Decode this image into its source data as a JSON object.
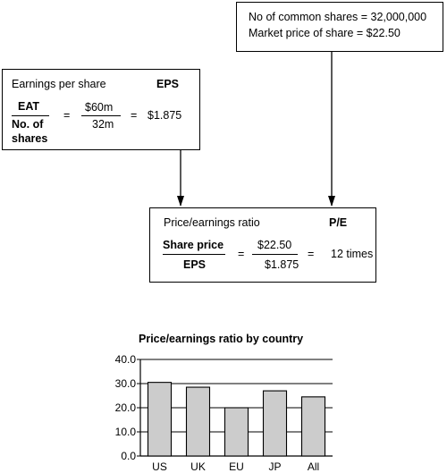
{
  "shares_box": {
    "line1": "No of common shares = 32,000,000",
    "line2": "Market price of share = $22.50"
  },
  "eps_box": {
    "title": "Earnings per share",
    "abbr": "EPS",
    "num_label": "EAT",
    "den_label_1": "No. of",
    "den_label_2": "shares",
    "eq1": "=",
    "num_value": "$60m",
    "den_value": "32m",
    "eq2": "=",
    "result": "$1.875"
  },
  "pe_box": {
    "title": "Price/earnings ratio",
    "abbr": "P/E",
    "num_label": "Share price",
    "den_label": "EPS",
    "eq1": "=",
    "num_value": "$22.50",
    "den_value": "$1.875",
    "eq2": "=",
    "result": "12 times"
  },
  "chart_data": {
    "type": "bar",
    "title": "Price/earnings ratio by country",
    "categories": [
      "US",
      "UK",
      "EU",
      "JP",
      "All"
    ],
    "values": [
      30.5,
      28.5,
      20.0,
      27.0,
      24.5
    ],
    "ylim": [
      0,
      40
    ],
    "yticks": [
      "0.0",
      "10.0",
      "20.0",
      "30.0",
      "40.0"
    ],
    "grid": true,
    "bar_color": "#cccccc"
  }
}
